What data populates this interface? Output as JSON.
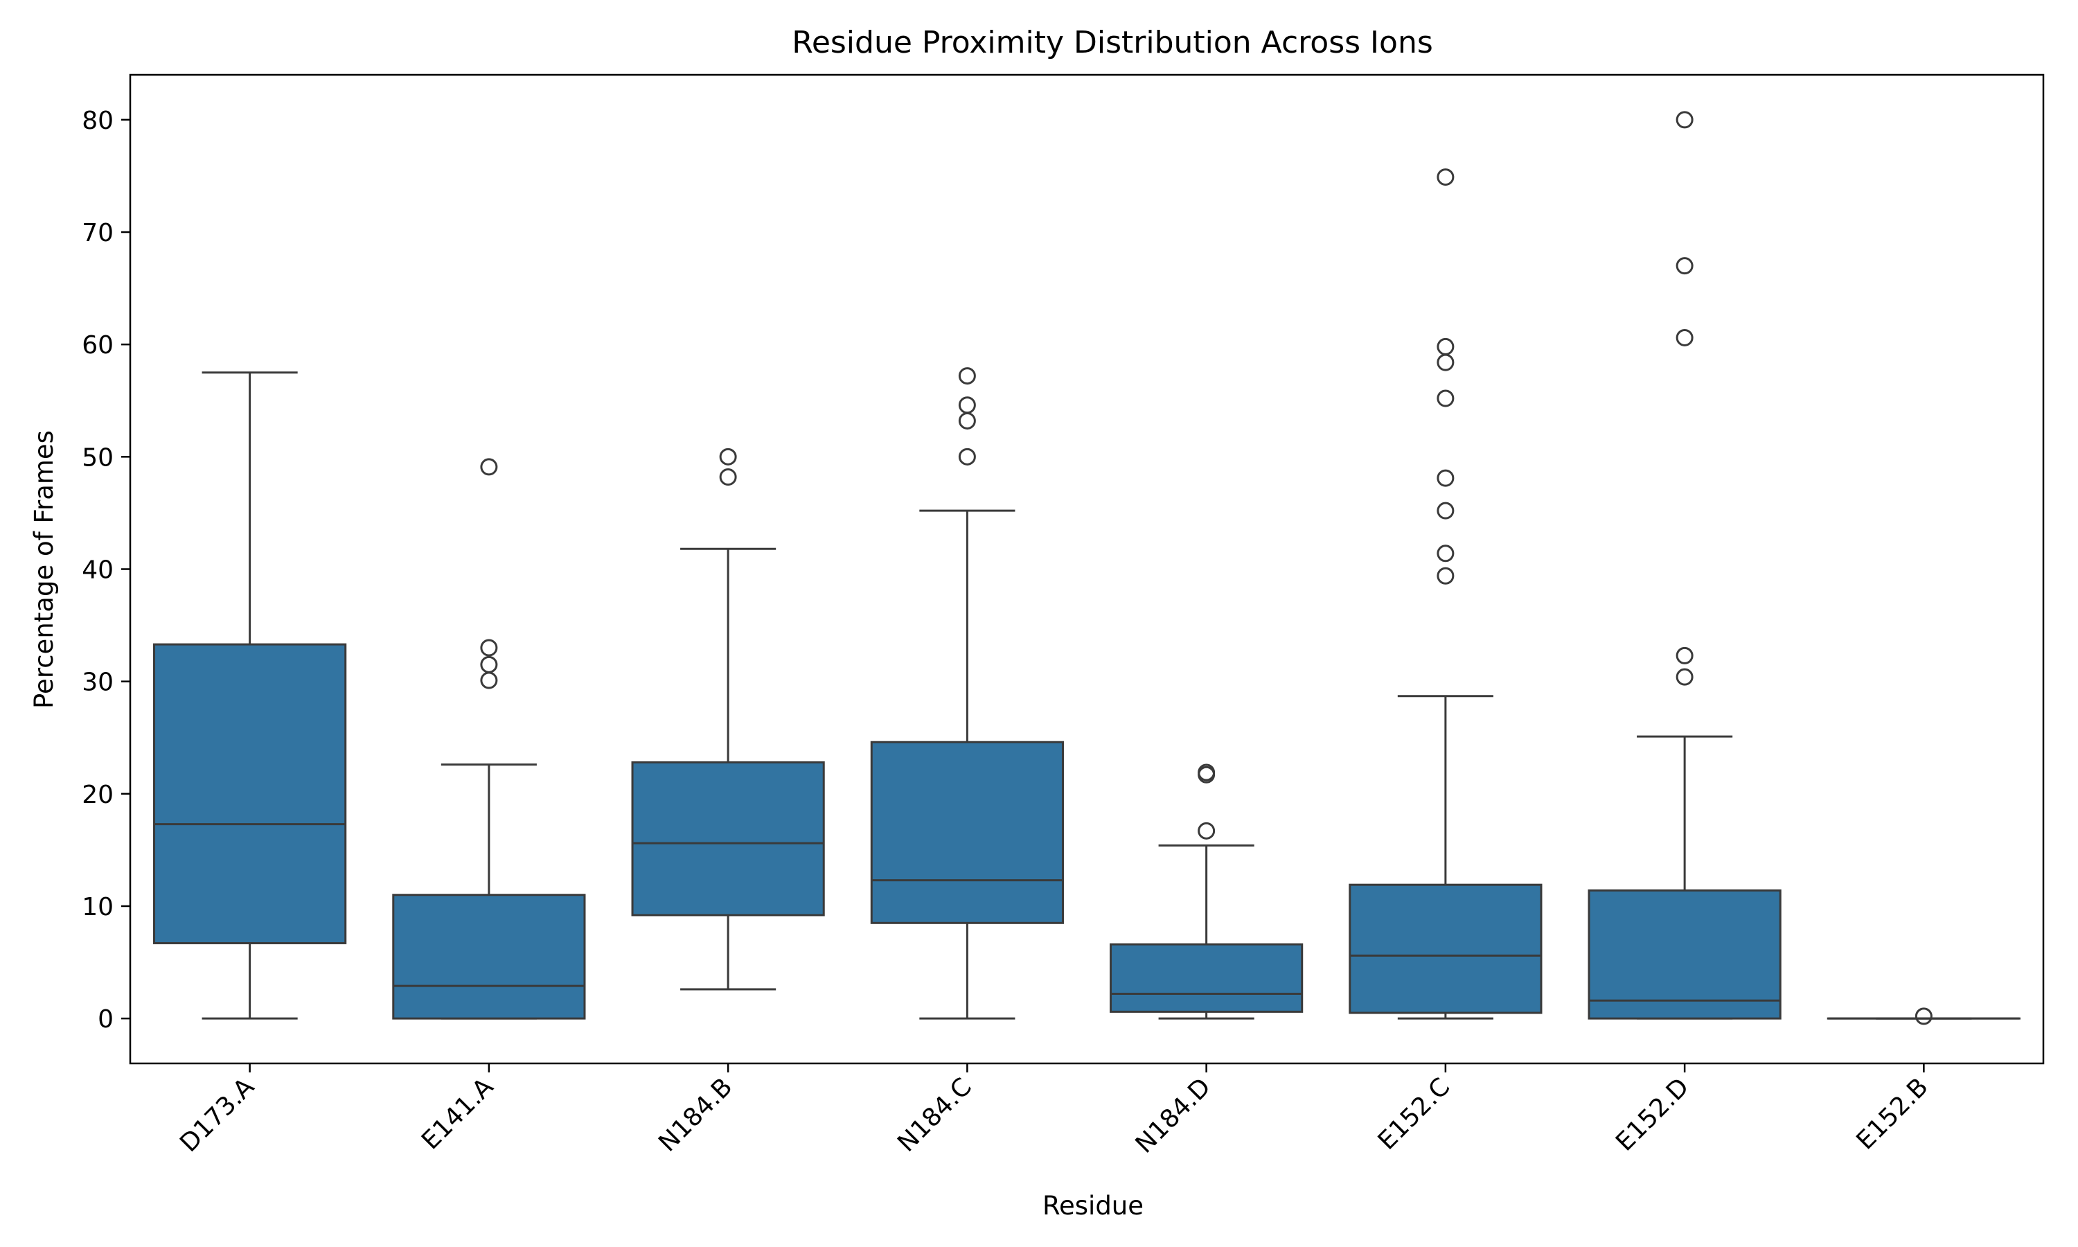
{
  "chart_data": {
    "type": "box",
    "title": "Residue Proximity Distribution Across Ions",
    "xlabel": "Residue",
    "ylabel": "Percentage of Frames",
    "ylim": [
      -4,
      84
    ],
    "yticks": [
      0,
      10,
      20,
      30,
      40,
      50,
      60,
      70,
      80
    ],
    "grid": false,
    "box_color": "#3274a1",
    "line_color": "#3a3a3a",
    "categories": [
      "D173.A",
      "E141.A",
      "N184.B",
      "N184.C",
      "N184.D",
      "E152.C",
      "E152.D",
      "E152.B"
    ],
    "boxes": [
      {
        "label": "D173.A",
        "whisker_low": 0,
        "q1": 6.7,
        "median": 17.3,
        "q3": 33.3,
        "whisker_high": 57.5,
        "outliers": []
      },
      {
        "label": "E141.A",
        "whisker_low": 0,
        "q1": 0,
        "median": 2.9,
        "q3": 11.0,
        "whisker_high": 22.6,
        "outliers": [
          30.1,
          31.5,
          33.0,
          49.1
        ]
      },
      {
        "label": "N184.B",
        "whisker_low": 2.6,
        "q1": 9.2,
        "median": 15.6,
        "q3": 22.8,
        "whisker_high": 41.8,
        "outliers": [
          48.2,
          50.0
        ]
      },
      {
        "label": "N184.C",
        "whisker_low": 0,
        "q1": 8.5,
        "median": 12.3,
        "q3": 24.6,
        "whisker_high": 45.2,
        "outliers": [
          50.0,
          53.2,
          54.6,
          57.2
        ]
      },
      {
        "label": "N184.D",
        "whisker_low": 0,
        "q1": 0.6,
        "median": 2.2,
        "q3": 6.6,
        "whisker_high": 15.4,
        "outliers": [
          16.7,
          21.7,
          21.9
        ]
      },
      {
        "label": "E152.C",
        "whisker_low": 0,
        "q1": 0.5,
        "median": 5.6,
        "q3": 11.9,
        "whisker_high": 28.7,
        "outliers": [
          39.4,
          41.4,
          45.2,
          48.1,
          55.2,
          58.4,
          59.8,
          74.9
        ]
      },
      {
        "label": "E152.D",
        "whisker_low": 0,
        "q1": 0,
        "median": 1.6,
        "q3": 11.4,
        "whisker_high": 25.1,
        "outliers": [
          30.4,
          32.3,
          60.6,
          67.0,
          80.0
        ]
      },
      {
        "label": "E152.B",
        "whisker_low": 0,
        "q1": 0,
        "median": 0,
        "q3": 0,
        "whisker_high": 0,
        "outliers": [
          0.2
        ]
      }
    ]
  }
}
